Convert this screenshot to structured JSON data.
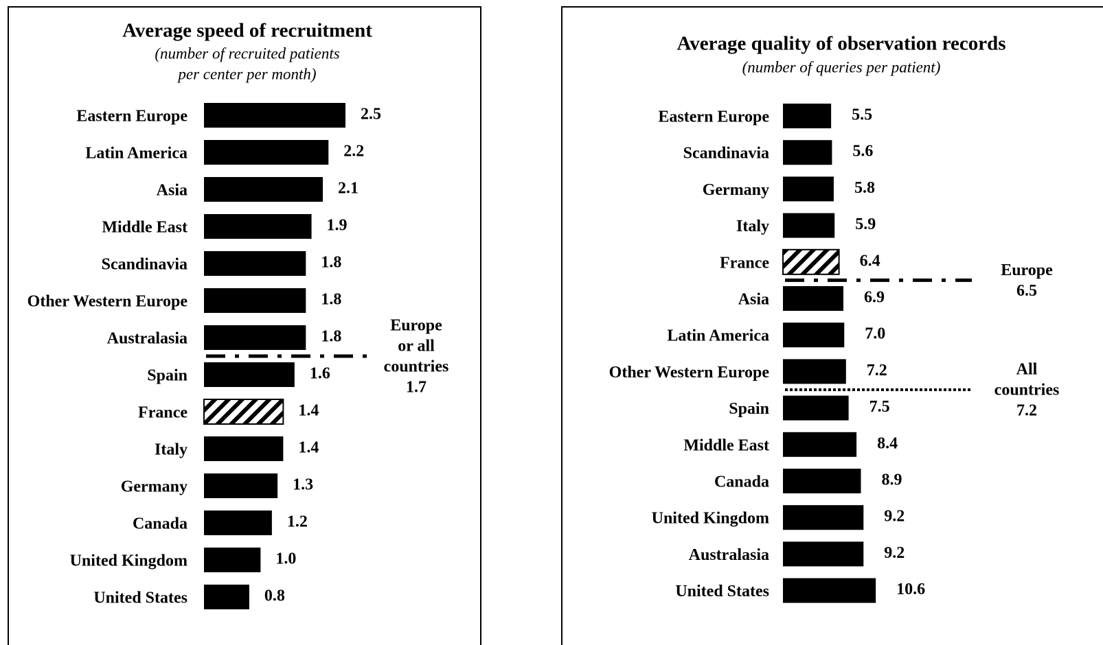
{
  "chart_data": [
    {
      "type": "bar",
      "orientation": "horizontal",
      "title": "Average speed of recruitment",
      "subtitle": [
        "(number of recruited patients",
        "per center per month)"
      ],
      "categories": [
        "Eastern Europe",
        "Latin America",
        "Asia",
        "Middle East",
        "Scandinavia",
        "Other Western Europe",
        "Australasia",
        "Spain",
        "France",
        "Italy",
        "Germany",
        "Canada",
        "United Kingdom",
        "United States"
      ],
      "values": [
        2.5,
        2.2,
        2.1,
        1.9,
        1.8,
        1.8,
        1.8,
        1.6,
        1.4,
        1.4,
        1.3,
        1.2,
        1.0,
        0.8
      ],
      "value_labels": [
        "2.5",
        "2.2",
        "2.1",
        "1.9",
        "1.8",
        "1.8",
        "1.8",
        "1.6",
        "1.4",
        "1.4",
        "1.3",
        "1.2",
        "1.0",
        "0.8"
      ],
      "color": "#000000",
      "highlight": "France",
      "reference_lines": [
        {
          "label": [
            "Europe",
            "or all",
            "countries"
          ],
          "value": 1.7,
          "style": "dash-dot"
        }
      ]
    },
    {
      "type": "bar",
      "orientation": "horizontal",
      "title": "Average quality of observation records",
      "subtitle": [
        "(number of queries per patient)"
      ],
      "categories": [
        "Eastern Europe",
        "Scandinavia",
        "Germany",
        "Italy",
        "France",
        "Asia",
        "Latin America",
        "Other Western Europe",
        "Spain",
        "Middle East",
        "Canada",
        "United Kingdom",
        "Australasia",
        "United States"
      ],
      "values": [
        5.5,
        5.6,
        5.8,
        5.9,
        6.4,
        6.9,
        7.0,
        7.2,
        7.5,
        8.4,
        8.9,
        9.2,
        9.2,
        10.6
      ],
      "value_labels": [
        "5.5",
        "5.6",
        "5.8",
        "5.9",
        "6.4",
        "6.9",
        "7.0",
        "7.2",
        "7.5",
        "8.4",
        "8.9",
        "9.2",
        "9.2",
        "10.6"
      ],
      "color": "#000000",
      "highlight": "France",
      "reference_lines": [
        {
          "label": [
            "Europe"
          ],
          "value": 6.5,
          "style": "dash-dot"
        },
        {
          "label": [
            "All",
            "countries"
          ],
          "value": 7.2,
          "style": "dotted"
        }
      ]
    }
  ]
}
